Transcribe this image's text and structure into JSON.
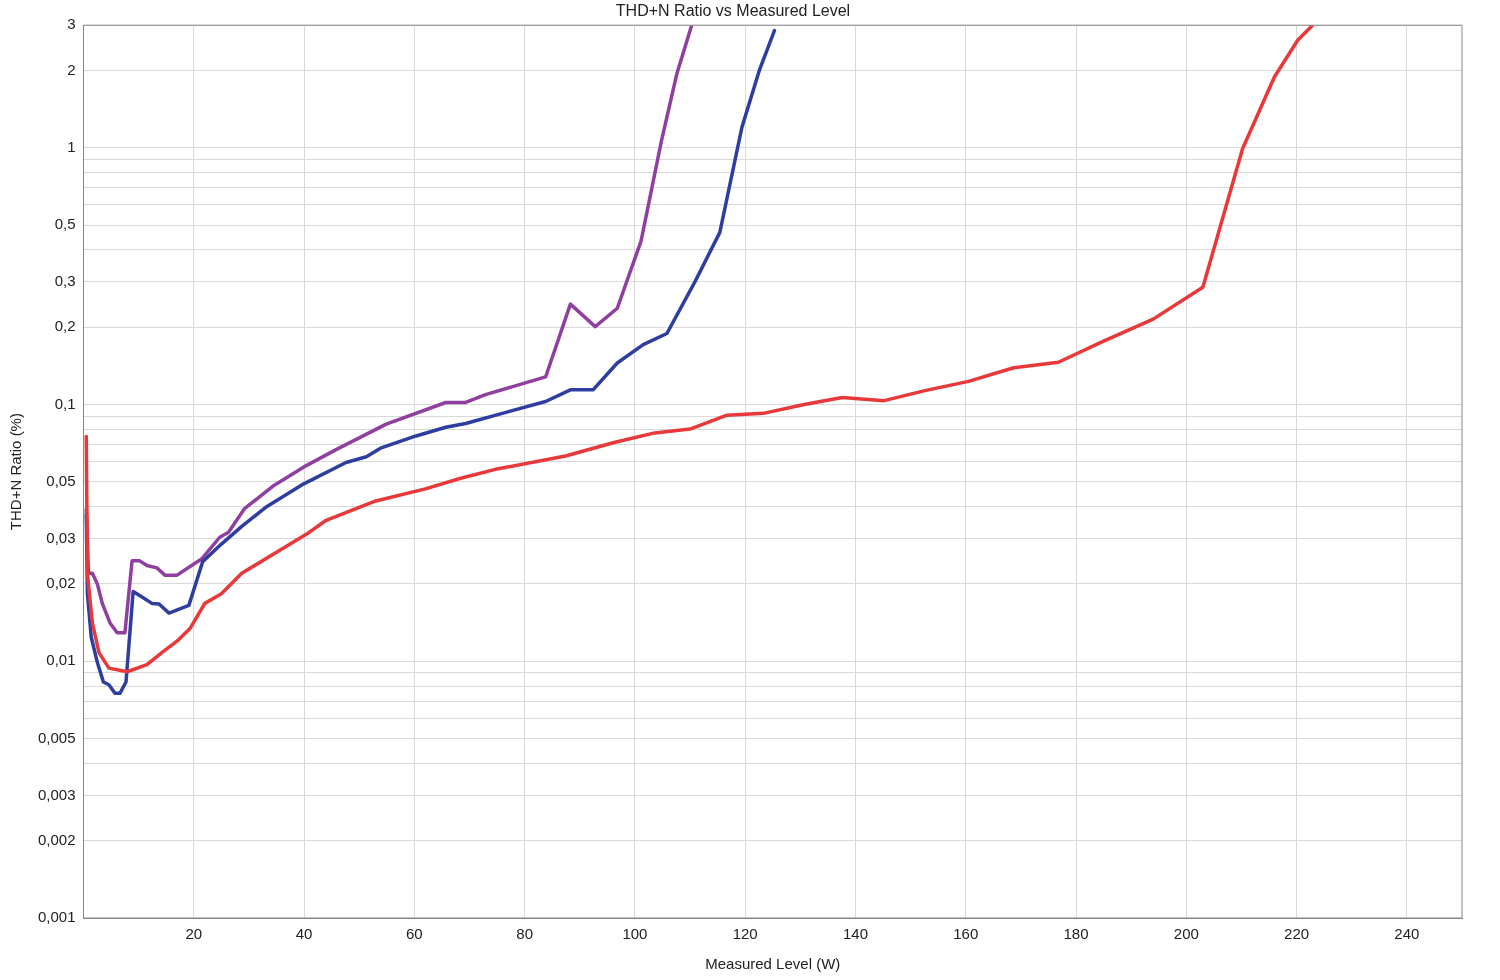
{
  "chart_data": {
    "type": "line",
    "title": "THD+N Ratio vs Measured Level",
    "xlabel": "Measured Level (W)",
    "ylabel": "THD+N Ratio (%)",
    "log": "y",
    "grid": true,
    "legend": false,
    "xlim": [
      0,
      250
    ],
    "xticks": [
      20,
      40,
      60,
      80,
      100,
      120,
      140,
      160,
      180,
      200,
      220,
      240
    ],
    "ylim": [
      0.001,
      3
    ],
    "yticks": [
      {
        "value": 0.001,
        "label": "0,001"
      },
      {
        "value": 0.002,
        "label": "0,002"
      },
      {
        "value": 0.003,
        "label": "0,003"
      },
      {
        "value": 0.004,
        "label": null
      },
      {
        "value": 0.005,
        "label": "0,005"
      },
      {
        "value": 0.006,
        "label": null
      },
      {
        "value": 0.007,
        "label": null
      },
      {
        "value": 0.008,
        "label": null
      },
      {
        "value": 0.009,
        "label": null
      },
      {
        "value": 0.01,
        "label": "0,01"
      },
      {
        "value": 0.02,
        "label": "0,02"
      },
      {
        "value": 0.03,
        "label": "0,03"
      },
      {
        "value": 0.04,
        "label": null
      },
      {
        "value": 0.05,
        "label": "0,05"
      },
      {
        "value": 0.06,
        "label": null
      },
      {
        "value": 0.07,
        "label": null
      },
      {
        "value": 0.08,
        "label": null
      },
      {
        "value": 0.09,
        "label": null
      },
      {
        "value": 0.1,
        "label": "0,1"
      },
      {
        "value": 0.2,
        "label": "0,2"
      },
      {
        "value": 0.3,
        "label": "0,3"
      },
      {
        "value": 0.4,
        "label": null
      },
      {
        "value": 0.5,
        "label": "0,5"
      },
      {
        "value": 0.6,
        "label": null
      },
      {
        "value": 0.7,
        "label": null
      },
      {
        "value": 0.8,
        "label": null
      },
      {
        "value": 0.9,
        "label": null
      },
      {
        "value": 1,
        "label": "1"
      },
      {
        "value": 2,
        "label": "2"
      },
      {
        "value": 3,
        "label": "3"
      }
    ],
    "series": [
      {
        "color": "#e8383a",
        "x": [
          0.5,
          0.7,
          1.6,
          2.8,
          4.6,
          7.9,
          11.5,
          14.2,
          17,
          19.3,
          22,
          25,
          28.7,
          35,
          40.4,
          44,
          53,
          62,
          68.4,
          74.7,
          87.4,
          96.4,
          103.6,
          110,
          116.7,
          123.5,
          130.7,
          137.6,
          145.2,
          152.4,
          160.5,
          168.7,
          176.8,
          184.9,
          194,
          203,
          210.2,
          216,
          220.2,
          222.9
        ],
        "values": [
          0.075,
          0.022,
          0.0141,
          0.0108,
          0.0094,
          0.0091,
          0.0097,
          0.0108,
          0.012,
          0.0134,
          0.0168,
          0.0183,
          0.022,
          0.0266,
          0.0312,
          0.0354,
          0.0421,
          0.0469,
          0.0516,
          0.0559,
          0.063,
          0.0713,
          0.0775,
          0.0802,
          0.0908,
          0.0925,
          0.1,
          0.1064,
          0.1035,
          0.113,
          0.123,
          0.139,
          0.146,
          0.176,
          0.215,
          0.286,
          0.99,
          1.89,
          2.62,
          3
        ]
      },
      {
        "color": "#2e3ea0",
        "x": [
          0.5,
          0.7,
          1.4,
          2.5,
          3.6,
          4.6,
          5.7,
          6.6,
          7.7,
          9,
          10.6,
          12.4,
          13.7,
          15.5,
          19.1,
          21.6,
          25,
          28.7,
          33.2,
          39.5,
          47.6,
          51.3,
          54,
          60.3,
          65.7,
          69.3,
          76.6,
          83.8,
          88.3,
          92.4,
          96.8,
          101.5,
          105.8,
          110.9,
          115.4,
          119.4,
          122.6,
          125.3
        ],
        "values": [
          0.0372,
          0.0184,
          0.0124,
          0.0099,
          0.0083,
          0.0081,
          0.0075,
          0.0075,
          0.0083,
          0.0187,
          0.0178,
          0.0168,
          0.0167,
          0.0154,
          0.0165,
          0.0244,
          0.0286,
          0.0335,
          0.04,
          0.0485,
          0.0594,
          0.0626,
          0.0678,
          0.0754,
          0.0815,
          0.0843,
          0.0932,
          0.1027,
          0.114,
          0.114,
          0.145,
          0.171,
          0.189,
          0.301,
          0.468,
          1.2,
          2.01,
          2.86
        ]
      },
      {
        "color": "#8e3fa0",
        "x": [
          0.5,
          0.9,
          1.6,
          2.5,
          3.4,
          4.8,
          6.1,
          7.5,
          8.8,
          10.2,
          11.5,
          13.3,
          14.8,
          16.9,
          19.6,
          21.4,
          24.7,
          26.3,
          29.2,
          34.6,
          40.4,
          45.8,
          54.9,
          65.7,
          69.3,
          72.9,
          83.8,
          88.3,
          92.8,
          96.8,
          101.1,
          104.8,
          107.6,
          110.3
        ],
        "values": [
          0.039,
          0.022,
          0.022,
          0.02,
          0.0168,
          0.0141,
          0.0129,
          0.0129,
          0.0246,
          0.0246,
          0.0236,
          0.0231,
          0.0216,
          0.0216,
          0.0236,
          0.025,
          0.0304,
          0.0318,
          0.0393,
          0.0485,
          0.0578,
          0.0667,
          0.0838,
          0.1018,
          0.1018,
          0.1092,
          0.128,
          0.246,
          0.201,
          0.237,
          0.432,
          1.06,
          1.94,
          3
        ]
      }
    ]
  }
}
